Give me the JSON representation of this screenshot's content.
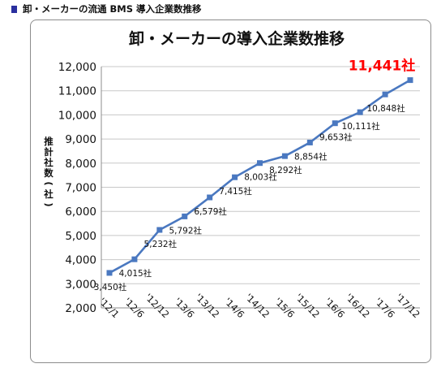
{
  "page_header": "卸・メーカーの流通 BMS 導入企業数推移",
  "colors": {
    "line": "#4a78c0",
    "highlight": "#ff0000",
    "header_marker": "#2a2f9e"
  },
  "chart_data": {
    "type": "line",
    "title": "卸・メーカーの導入企業数推移",
    "ylabel": "推計社数(社)",
    "xlabel": "",
    "ylim": [
      2000,
      12000
    ],
    "yticks": [
      "2,000",
      "3,000",
      "4,000",
      "5,000",
      "6,000",
      "7,000",
      "8,000",
      "9,000",
      "10,000",
      "11,000",
      "12,000"
    ],
    "ytick_values": [
      2000,
      3000,
      4000,
      5000,
      6000,
      7000,
      8000,
      9000,
      10000,
      11000,
      12000
    ],
    "grid": true,
    "categories": [
      "'12/1",
      "'12/6",
      "'12/12",
      "'13/6",
      "'13/12",
      "'14/6",
      "'14/12",
      "'15/6",
      "'15/12",
      "'16/6",
      "'16/12",
      "'17/6",
      "'17/12"
    ],
    "series": [
      {
        "values": [
          3450,
          4015,
          5232,
          5792,
          6579,
          7415,
          8003,
          8292,
          8854,
          9653,
          10111,
          10848,
          11441
        ],
        "labels": [
          "3,450社",
          "4,015社",
          "5,232社",
          "5,792社",
          "6,579社",
          "7,415社",
          "8,003社",
          "8,292社",
          "8,854社",
          "9,653社",
          "10,111社",
          "10,848社",
          "11,441社"
        ]
      }
    ]
  }
}
